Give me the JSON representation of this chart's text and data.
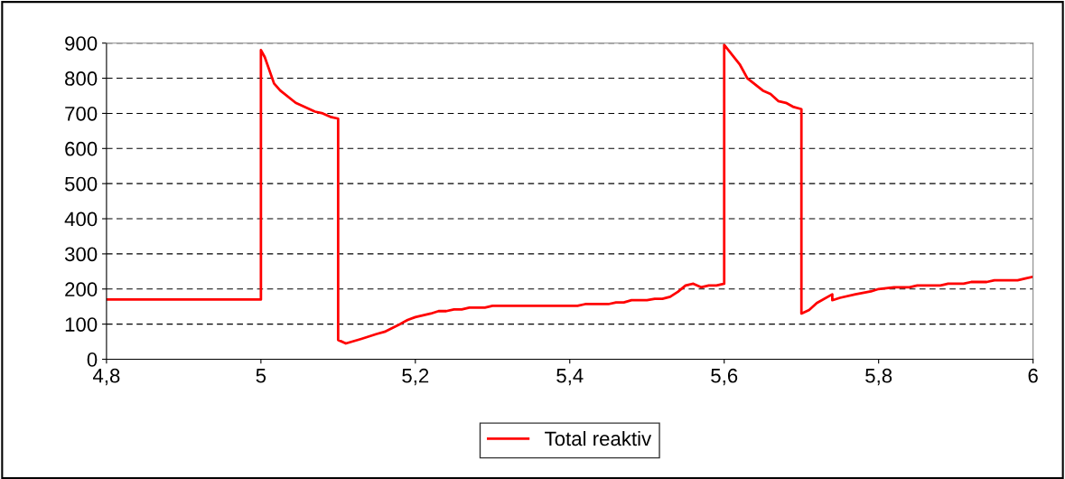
{
  "chart_data": {
    "type": "line",
    "xlim": [
      4.8,
      6
    ],
    "xticks": [
      {
        "value": 4.8,
        "label": "4,8"
      },
      {
        "value": 5,
        "label": "5"
      },
      {
        "value": 5.2,
        "label": "5,2"
      },
      {
        "value": 5.4,
        "label": "5,4"
      },
      {
        "value": 5.6,
        "label": "5,6"
      },
      {
        "value": 5.8,
        "label": "5,8"
      },
      {
        "value": 6,
        "label": "6"
      }
    ],
    "ylim": [
      0,
      900
    ],
    "yticks": [
      0,
      100,
      200,
      300,
      400,
      500,
      600,
      700,
      800,
      900
    ],
    "grid": "y",
    "legend": "bottom",
    "marker": "none",
    "line_style": "solid",
    "series": [
      {
        "name": "Total reaktiv",
        "color": "#ff0000",
        "x": [
          4.8,
          5.0,
          5.0,
          5.005,
          5.017,
          5.025,
          5.045,
          5.07,
          5.08,
          5.09,
          5.1,
          5.1,
          5.11,
          5.13,
          5.15,
          5.16,
          5.18,
          5.19,
          5.2,
          5.22,
          5.23,
          5.24,
          5.25,
          5.26,
          5.27,
          5.29,
          5.3,
          5.41,
          5.42,
          5.45,
          5.46,
          5.47,
          5.48,
          5.5,
          5.51,
          5.52,
          5.53,
          5.54,
          5.55,
          5.56,
          5.57,
          5.58,
          5.59,
          5.6,
          5.6,
          5.62,
          5.63,
          5.65,
          5.66,
          5.67,
          5.68,
          5.69,
          5.7,
          5.7,
          5.71,
          5.72,
          5.74,
          5.74,
          5.75,
          5.77,
          5.79,
          5.8,
          5.82,
          5.84,
          5.85,
          5.88,
          5.89,
          5.91,
          5.92,
          5.94,
          5.95,
          5.98,
          5.99,
          6.0
        ],
        "values": [
          170,
          170,
          880,
          860,
          785,
          765,
          730,
          705,
          700,
          690,
          685,
          55,
          45,
          58,
          72,
          78,
          100,
          112,
          120,
          130,
          137,
          137,
          142,
          142,
          147,
          147,
          152,
          152,
          157,
          157,
          162,
          162,
          168,
          168,
          172,
          172,
          178,
          192,
          210,
          215,
          205,
          210,
          210,
          215,
          895,
          840,
          800,
          765,
          755,
          735,
          730,
          718,
          712,
          130,
          140,
          160,
          185,
          168,
          175,
          185,
          193,
          200,
          205,
          205,
          210,
          210,
          215,
          215,
          220,
          220,
          225,
          225,
          230,
          235
        ]
      }
    ]
  }
}
